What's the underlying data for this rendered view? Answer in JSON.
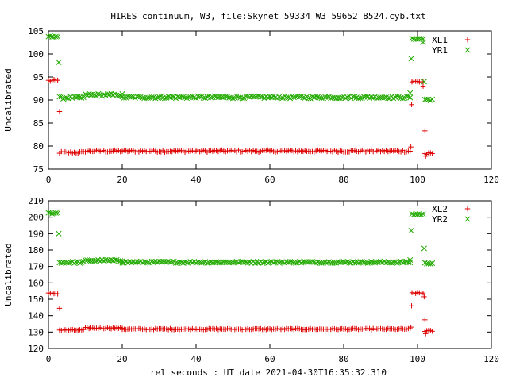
{
  "page": {
    "title": "HIRES continuum, W3, file:Skynet_59334_W3_59652_8524.cyb.txt",
    "xlabel": "rel seconds : UT date 2021-04-30T16:35:32.310"
  },
  "colors": {
    "red": "#dd0000",
    "green": "#22aa00"
  },
  "chart_data": [
    {
      "type": "scatter",
      "ylabel": "Uncalibrated",
      "xlim": [
        0,
        120
      ],
      "ylim": [
        75,
        105
      ],
      "xticks": [
        0,
        20,
        40,
        60,
        80,
        100,
        120
      ],
      "yticks": [
        75,
        80,
        85,
        90,
        95,
        100,
        105
      ],
      "legend_position": "top-right",
      "series": [
        {
          "name": "XL1",
          "marker": "plus",
          "color": "#dd0000",
          "segments": [
            {
              "x_start": 0.0,
              "x_end": 2.5,
              "y": 94.2,
              "noise": 0.25
            },
            {
              "x_start": 3.0,
              "x_end": 9.5,
              "y": 78.6,
              "noise": 0.25
            },
            {
              "x_start": 10.0,
              "x_end": 98.0,
              "y": 78.9,
              "noise": 0.25
            },
            {
              "x_start": 98.5,
              "x_end": 101.5,
              "y": 94.0,
              "noise": 0.25
            },
            {
              "x_start": 102.0,
              "x_end": 104.0,
              "y": 78.3,
              "noise": 0.25
            }
          ],
          "points": [
            [
              3.0,
              87.5
            ],
            [
              98.2,
              79.8
            ],
            [
              98.4,
              89.0
            ],
            [
              102.0,
              83.3
            ],
            [
              102.2,
              77.8
            ],
            [
              101.5,
              93.0
            ]
          ]
        },
        {
          "name": "YR1",
          "marker": "cross",
          "color": "#22aa00",
          "segments": [
            {
              "x_start": 0.0,
              "x_end": 2.5,
              "y": 103.8,
              "noise": 0.15
            },
            {
              "x_start": 3.0,
              "x_end": 9.5,
              "y": 90.5,
              "noise": 0.25
            },
            {
              "x_start": 10.0,
              "x_end": 20.0,
              "y": 91.1,
              "noise": 0.25
            },
            {
              "x_start": 20.0,
              "x_end": 98.0,
              "y": 90.6,
              "noise": 0.25
            },
            {
              "x_start": 98.5,
              "x_end": 101.5,
              "y": 103.3,
              "noise": 0.15
            },
            {
              "x_start": 102.0,
              "x_end": 104.0,
              "y": 90.1,
              "noise": 0.2
            }
          ],
          "points": [
            [
              2.8,
              98.2
            ],
            [
              98.0,
              91.5
            ],
            [
              98.3,
              99.0
            ],
            [
              101.8,
              94.0
            ],
            [
              101.5,
              102.5
            ]
          ]
        }
      ]
    },
    {
      "type": "scatter",
      "ylabel": "Uncalibrated",
      "xlim": [
        0,
        120
      ],
      "ylim": [
        120,
        210
      ],
      "xticks": [
        0,
        20,
        40,
        60,
        80,
        100,
        120
      ],
      "yticks": [
        120,
        130,
        140,
        150,
        160,
        170,
        180,
        190,
        200,
        210
      ],
      "legend_position": "top-right",
      "series": [
        {
          "name": "XL2",
          "marker": "plus",
          "color": "#dd0000",
          "segments": [
            {
              "x_start": 0.0,
              "x_end": 2.5,
              "y": 153.5,
              "noise": 0.4
            },
            {
              "x_start": 3.0,
              "x_end": 9.5,
              "y": 131.2,
              "noise": 0.4
            },
            {
              "x_start": 10.0,
              "x_end": 20.0,
              "y": 132.4,
              "noise": 0.4
            },
            {
              "x_start": 20.0,
              "x_end": 98.0,
              "y": 131.8,
              "noise": 0.4
            },
            {
              "x_start": 98.5,
              "x_end": 101.5,
              "y": 153.8,
              "noise": 0.4
            },
            {
              "x_start": 102.0,
              "x_end": 104.0,
              "y": 130.7,
              "noise": 0.4
            }
          ],
          "points": [
            [
              3.0,
              144.5
            ],
            [
              98.2,
              133.0
            ],
            [
              98.4,
              146.0
            ],
            [
              101.8,
              151.5
            ],
            [
              102.0,
              137.5
            ],
            [
              102.2,
              129.0
            ]
          ]
        },
        {
          "name": "YR2",
          "marker": "cross",
          "color": "#22aa00",
          "segments": [
            {
              "x_start": 0.0,
              "x_end": 2.5,
              "y": 202.5,
              "noise": 0.4
            },
            {
              "x_start": 3.0,
              "x_end": 9.5,
              "y": 172.5,
              "noise": 0.5
            },
            {
              "x_start": 10.0,
              "x_end": 20.0,
              "y": 173.6,
              "noise": 0.5
            },
            {
              "x_start": 20.0,
              "x_end": 98.0,
              "y": 172.6,
              "noise": 0.5
            },
            {
              "x_start": 98.5,
              "x_end": 101.5,
              "y": 201.8,
              "noise": 0.4
            },
            {
              "x_start": 102.0,
              "x_end": 104.0,
              "y": 172.0,
              "noise": 0.4
            }
          ],
          "points": [
            [
              2.8,
              190.0
            ],
            [
              98.0,
              174.0
            ],
            [
              98.3,
              191.8
            ],
            [
              101.8,
              181.0
            ]
          ]
        }
      ]
    }
  ]
}
